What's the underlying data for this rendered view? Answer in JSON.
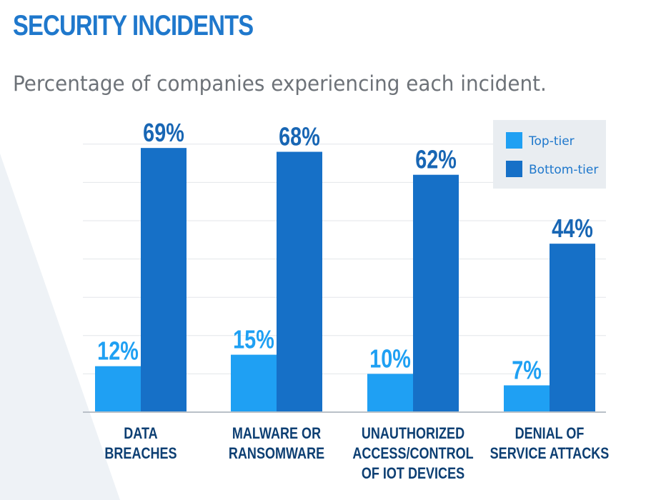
{
  "colors": {
    "title": "#1f78cc",
    "subtitle": "#6d7278",
    "top_tier": "#1fa0f3",
    "bottom_tier": "#1670c7",
    "label_top_tier": "#1fa0f3",
    "label_bottom_tier": "#1866b4",
    "category": "#0d3f73",
    "gridline": "#e3e6ea",
    "baseline": "#b9c0c8",
    "legend_bg": "#e9edf1",
    "legend_text": "#1f78cc",
    "background_shape": "#eef2f6"
  },
  "chart_data": {
    "type": "bar",
    "title": "SECURITY INCIDENTS",
    "subtitle": "Percentage of companies experiencing each incident.",
    "categories": [
      [
        "DATA",
        "BREACHES"
      ],
      [
        "MALWARE OR",
        "RANSOMWARE"
      ],
      [
        "UNAUTHORIZED",
        "ACCESS/CONTROL",
        "OF IOT DEVICES"
      ],
      [
        "DENIAL OF",
        "SERVICE ATTACKS"
      ]
    ],
    "series": [
      {
        "name": "Top-tier",
        "values": [
          12,
          15,
          10,
          7
        ],
        "labels": [
          "12%",
          "15%",
          "10%",
          "7%"
        ]
      },
      {
        "name": "Bottom-tier",
        "values": [
          69,
          68,
          62,
          44
        ],
        "labels": [
          "69%",
          "68%",
          "62%",
          "44%"
        ]
      }
    ],
    "ylim": [
      0,
      70
    ],
    "grid": true,
    "legend": "top-right"
  }
}
